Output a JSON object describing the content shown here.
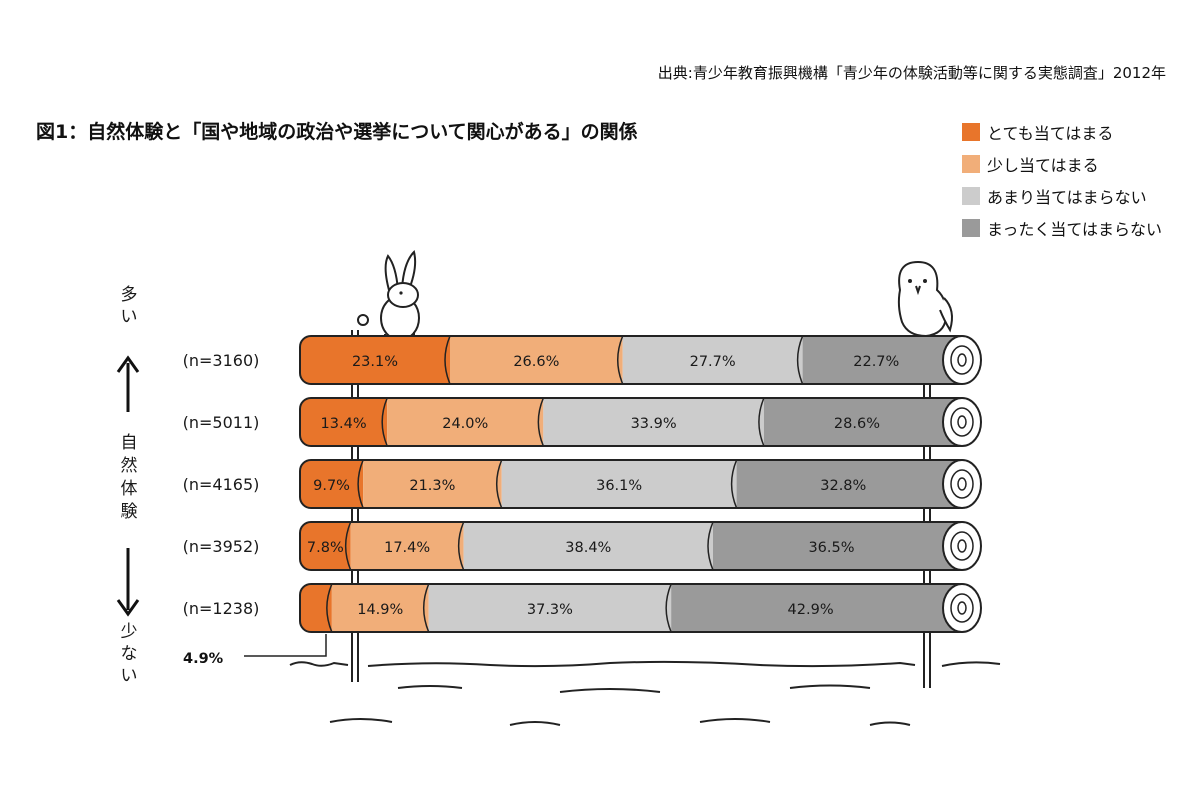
{
  "source": "出典:青少年教育振興機構「青少年の体験活動等に関する実態調査」2012年",
  "chart_data": {
    "type": "bar",
    "orientation": "horizontal",
    "stacked": true,
    "percent": true,
    "title": "図1：自然体験と「国や地域の政治や選挙について関心がある」の関係",
    "categories": [
      "(n=3160)",
      "(n=5011)",
      "(n=4165)",
      "(n=3952)",
      "(n=1238)"
    ],
    "series": [
      {
        "name": "とても当てはまる",
        "color": "#e8752b",
        "values": [
          23.1,
          13.4,
          9.7,
          7.8,
          4.9
        ]
      },
      {
        "name": "少し当てはまる",
        "color": "#f1ae79",
        "values": [
          26.6,
          24.0,
          21.3,
          17.4,
          14.9
        ]
      },
      {
        "name": "あまり当てはまらない",
        "color": "#cccccc",
        "values": [
          27.7,
          33.9,
          36.1,
          38.4,
          37.3
        ]
      },
      {
        "name": "まったく当てはまらない",
        "color": "#9a9a9a",
        "values": [
          22.7,
          28.6,
          32.8,
          36.5,
          42.9
        ]
      }
    ],
    "value_labels": [
      [
        "23.1%",
        "26.6%",
        "27.7%",
        "22.7%"
      ],
      [
        "13.4%",
        "24.0%",
        "33.9%",
        "28.6%"
      ],
      [
        "9.7%",
        "21.3%",
        "36.1%",
        "32.8%"
      ],
      [
        "7.8%",
        "17.4%",
        "38.4%",
        "36.5%"
      ],
      [
        "",
        "14.9%",
        "37.3%",
        "42.9%"
      ]
    ],
    "callout": "4.9%",
    "axis": {
      "top": "多い",
      "label": "自然体験",
      "bottom": "少ない"
    },
    "legend": "top-right"
  }
}
